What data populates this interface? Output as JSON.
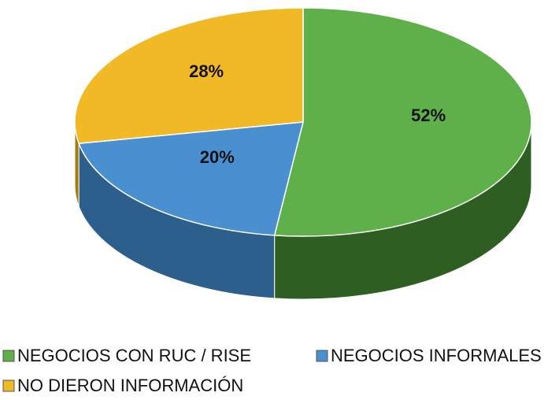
{
  "chart_data": {
    "type": "pie",
    "categories": [
      "NEGOCIOS CON RUC / RISE",
      "NEGOCIOS INFORMALES",
      "NO DIERON INFORMACIÓN"
    ],
    "values": [
      52,
      20,
      28
    ],
    "value_labels": [
      "52%",
      "20%",
      "28%"
    ],
    "colors": [
      "#5fb04a",
      "#4a90d0",
      "#f2b926"
    ],
    "side_colors": [
      "#2f5e22",
      "#2c5f8c",
      "#a37a10"
    ],
    "legend": "bottom"
  }
}
